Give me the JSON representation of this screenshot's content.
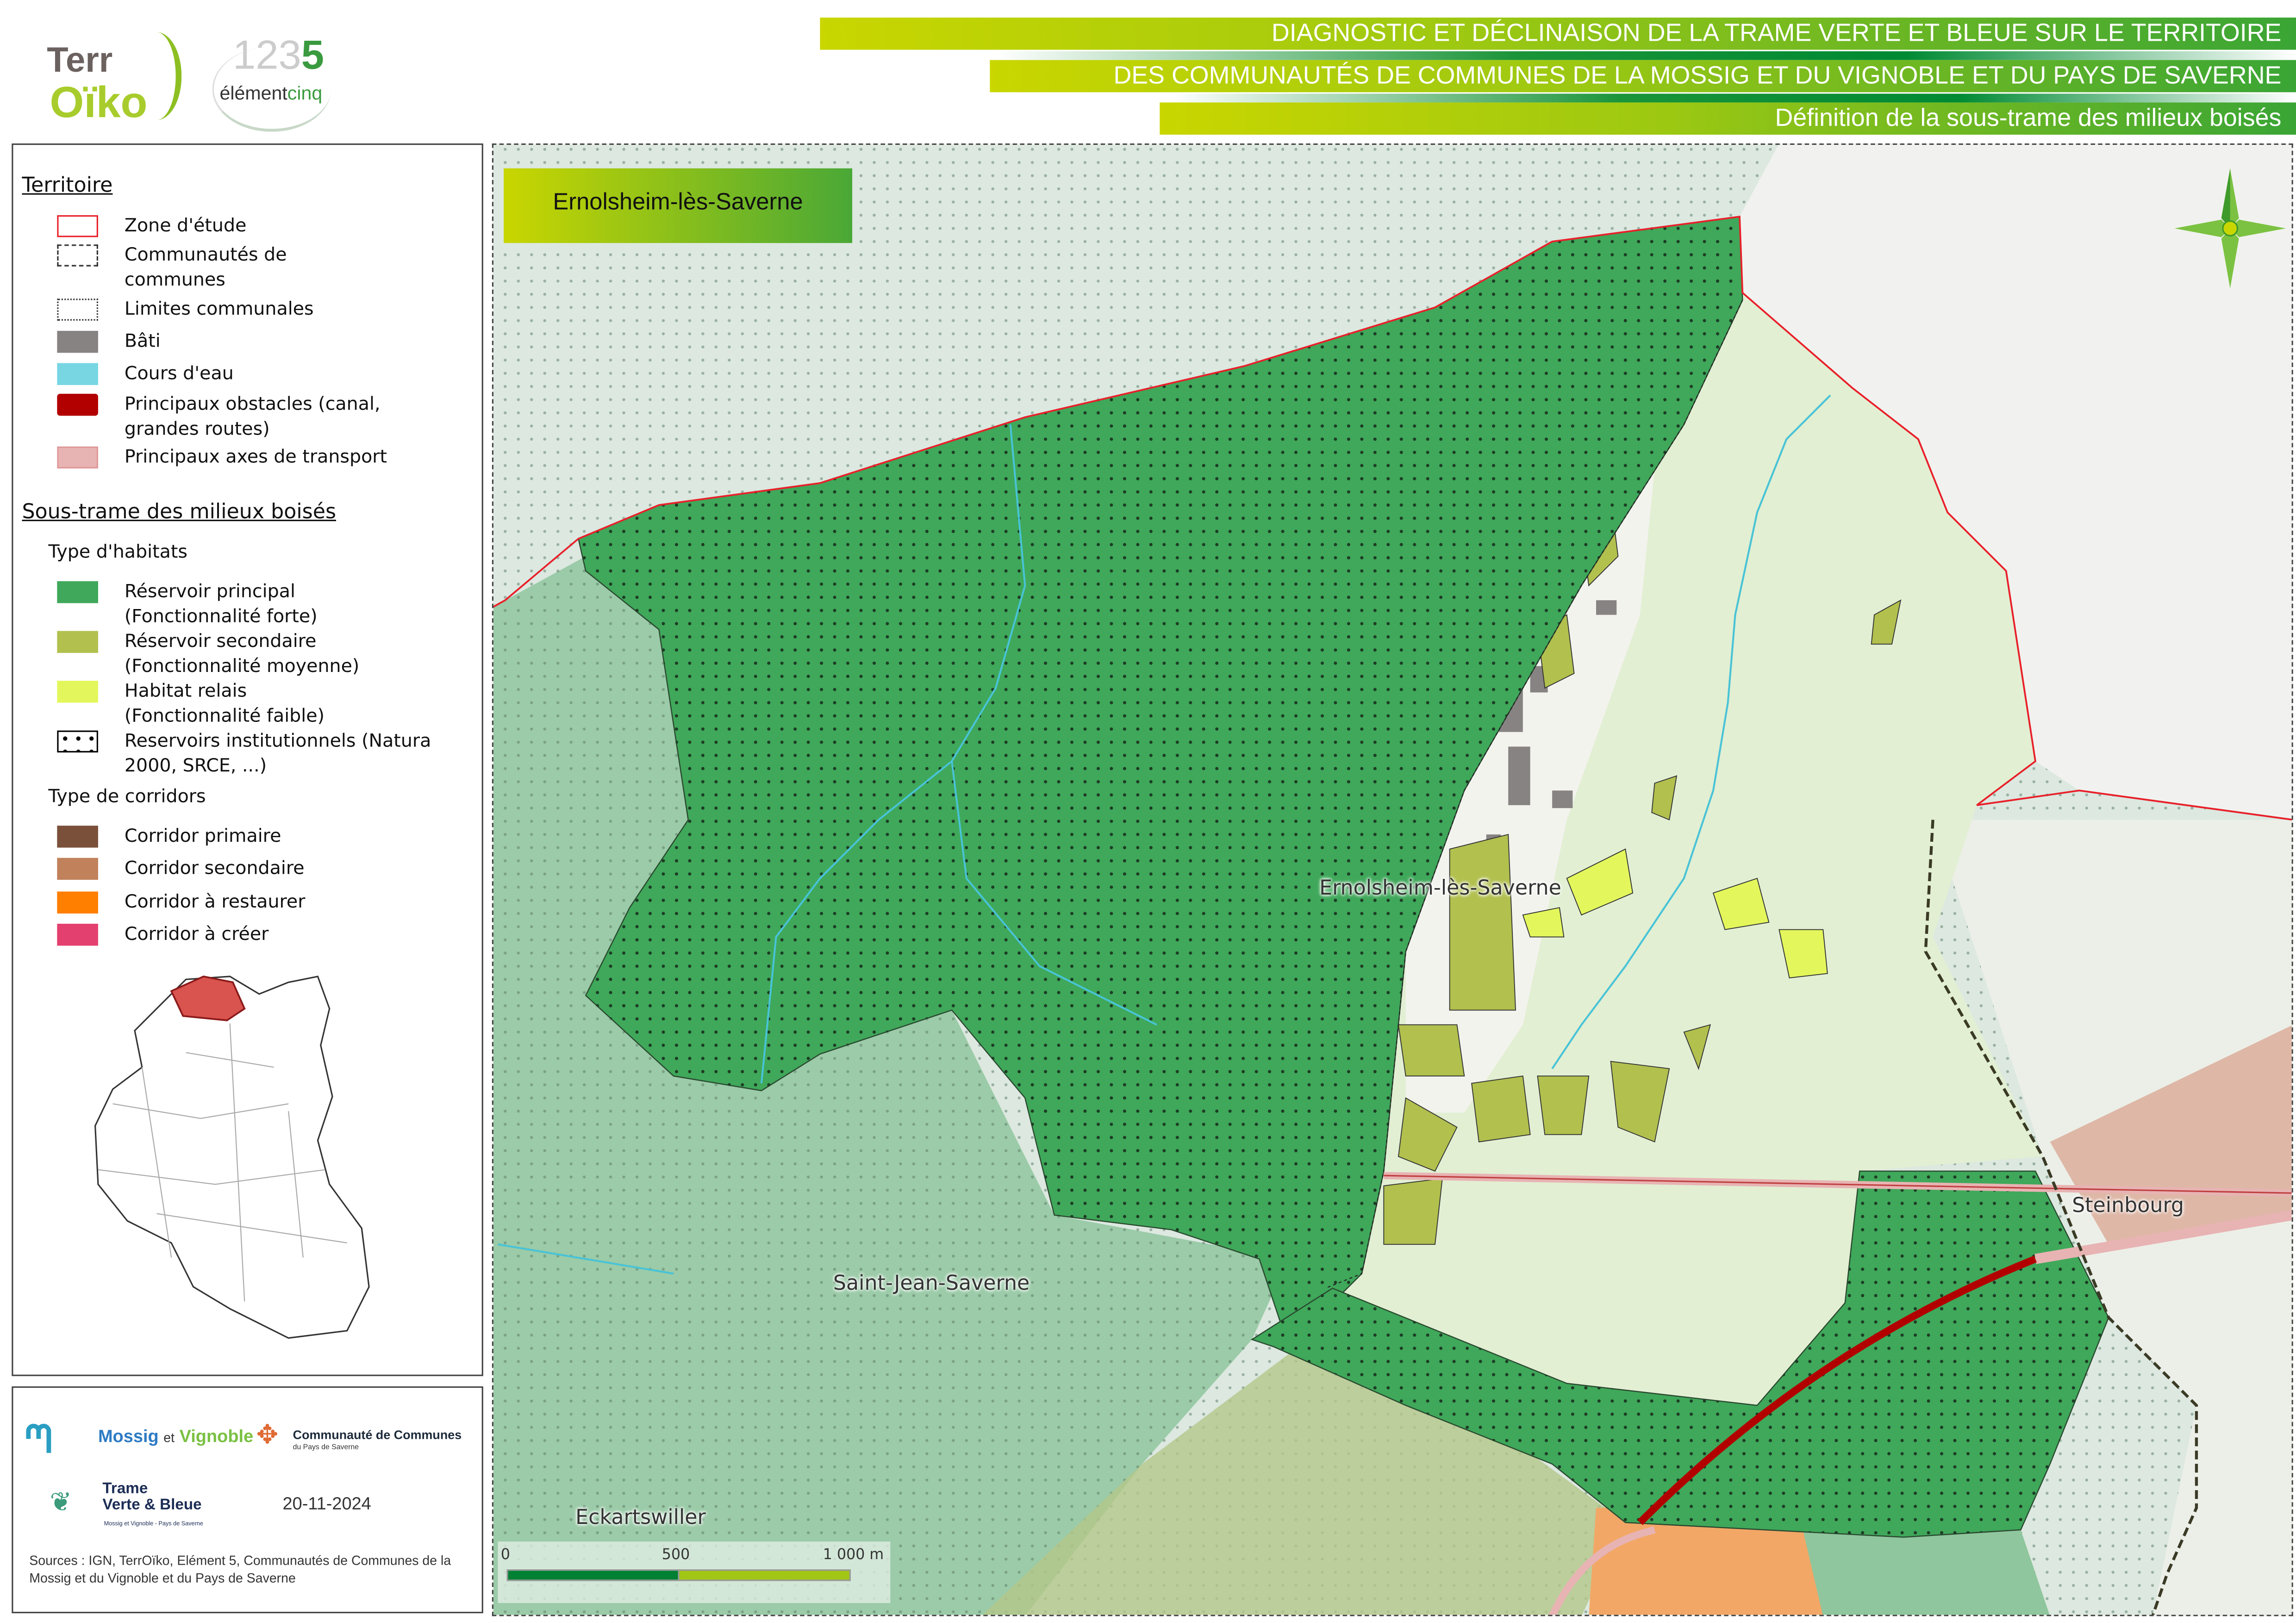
{
  "header": {
    "logos": {
      "terroiko": "TerrOïko",
      "element5": "1 2 3 4 5 élémentcinq"
    },
    "title_line1": "DIAGNOSTIC ET DÉCLINAISON DE LA TRAME VERTE ET BLEUE SUR LE TERRITOIRE",
    "title_line2": "DES COMMUNAUTÉS DE COMMUNES DE LA MOSSIG ET DU VIGNOBLE ET DU PAYS DE SAVERNE",
    "title_line3": "Définition de la sous-trame des milieux boisés"
  },
  "legend": {
    "section1_title": "Territoire",
    "territoire_items": [
      {
        "label": "Zone d'étude",
        "style": "outline",
        "color": "#e8202a"
      },
      {
        "label": "Communautés de communes",
        "style": "dashed",
        "color": "#333333"
      },
      {
        "label": "Limites communales",
        "style": "dotted",
        "color": "#333333"
      },
      {
        "label": "Bâti",
        "style": "fill",
        "color": "#888383"
      },
      {
        "label": "Cours d'eau",
        "style": "fill",
        "color": "#78d6e3"
      },
      {
        "label": "Principaux obstacles (canal, grandes routes)",
        "style": "fill",
        "color": "#b20000"
      },
      {
        "label": "Principaux axes de transport",
        "style": "fill",
        "color": "#e8b3b3"
      }
    ],
    "section2_title": "Sous-trame des milieux boisés",
    "habitats_title": "Type d'habitats",
    "habitat_items": [
      {
        "label": "Réservoir principal (Fonctionnalité forte)",
        "color": "#3fa85a"
      },
      {
        "label": "Réservoir secondaire (Fonctionnalité moyenne)",
        "color": "#b2c04e"
      },
      {
        "label": "Habitat relais (Fonctionnalité faible)",
        "color": "#e3f75c"
      },
      {
        "label": "Reservoirs institutionnels (Natura 2000, SRCE, ...)",
        "style": "dots",
        "color": "#000000"
      }
    ],
    "corridors_title": "Type de corridors",
    "corridor_items": [
      {
        "label": "Corridor primaire",
        "color": "#7b503a"
      },
      {
        "label": "Corridor secondaire",
        "color": "#c0815b"
      },
      {
        "label": "Corridor à restaurer",
        "color": "#ff7f00"
      },
      {
        "label": "Corridor à créer",
        "color": "#e4406f"
      }
    ]
  },
  "footer": {
    "logo_mossig": "communauté de communes Mossig et Vignoble Alsace",
    "logo_saverne": {
      "line1": "Communauté de Communes",
      "line2": "du Pays de Saverne"
    },
    "logo_tvb": {
      "line1": "Trame",
      "line2": "Verte & Bleue",
      "line3": "Mossig et Vignoble - Pays de Saverne"
    },
    "date": "20-11-2024",
    "sources": "Sources : IGN, TerrOïko, Elément 5, Communautés de Communes de la Mossig et du Vignoble et du Pays de Saverne"
  },
  "map": {
    "commune_title": "Ernolsheim-lès-Saverne",
    "place_labels": {
      "ernolsheim": "Ernolsheim-lès-Saverne",
      "saint_jean": "Saint-Jean-Saverne",
      "steinbourg": "Steinbourg",
      "eckartswiller": "Eckartswiller"
    },
    "north_arrow": "compass-rose-icon",
    "scale_bar": {
      "labels": [
        "0",
        "500",
        "1 000 m"
      ],
      "colors": [
        "#008033",
        "#a1c615"
      ]
    },
    "colors": {
      "reservoir_principal": "#3fa85a",
      "zone_etude": "#e8202a",
      "obstacle": "#b20000",
      "water": "#49c3d6"
    }
  }
}
